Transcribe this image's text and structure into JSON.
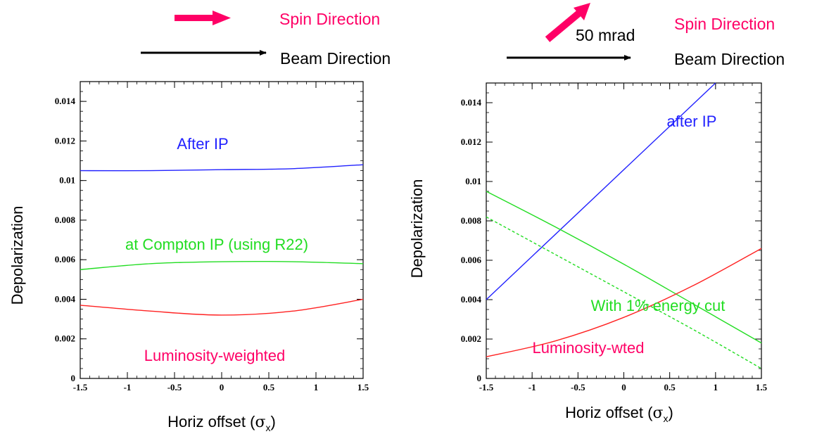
{
  "header": {
    "left": {
      "spin_label": "Spin Direction",
      "beam_label": "Beam Direction"
    },
    "right": {
      "angle_label": "50 mrad",
      "spin_label": "Spin Direction",
      "beam_label": "Beam Direction"
    }
  },
  "colors": {
    "spin": "#ff0066",
    "beam": "#000000",
    "blue": "#2222ff",
    "green": "#22dd22",
    "red": "#ff2222"
  },
  "chart_data": [
    {
      "type": "line",
      "title": "",
      "xlabel_main": "Horiz offset (",
      "xlabel_sigma": "σ",
      "xlabel_sub": "x",
      "xlabel_close": ")",
      "ylabel": "Depolarization",
      "xlim": [
        -1.5,
        1.5
      ],
      "ylim": [
        0,
        0.015
      ],
      "xticks": [
        "-1.5",
        "-1",
        "-0.5",
        "0",
        "0.5",
        "1",
        "1.5"
      ],
      "yticks": [
        "0",
        "0.002",
        "0.004",
        "0.006",
        "0.008",
        "0.01",
        "0.012",
        "0.014"
      ],
      "series": [
        {
          "name": "After IP",
          "color": "#2222ff",
          "x": [
            -1.5,
            -0.75,
            0,
            0.75,
            1.5
          ],
          "y": [
            0.0105,
            0.0105,
            0.01055,
            0.0106,
            0.0108
          ]
        },
        {
          "name": "at Compton IP (using R22)",
          "color": "#22dd22",
          "x": [
            -1.5,
            -0.75,
            0,
            0.75,
            1.5
          ],
          "y": [
            0.0055,
            0.0058,
            0.0059,
            0.0059,
            0.0058
          ]
        },
        {
          "name": "Luminosity-weighted",
          "color": "#ff2222",
          "x": [
            -1.5,
            -0.75,
            0,
            0.75,
            1.5
          ],
          "y": [
            0.0037,
            0.0034,
            0.0032,
            0.0034,
            0.004
          ]
        }
      ]
    },
    {
      "type": "line",
      "title": "",
      "xlabel_main": "Horiz offset (",
      "xlabel_sigma": "σ",
      "xlabel_sub": "x",
      "xlabel_close": ")",
      "ylabel": "Depolarization",
      "xlim": [
        -1.5,
        1.5
      ],
      "ylim": [
        0,
        0.015
      ],
      "xticks": [
        "-1.5",
        "-1",
        "-0.5",
        "0",
        "0.5",
        "1",
        "1.5"
      ],
      "yticks": [
        "0",
        "0.002",
        "0.004",
        "0.006",
        "0.008",
        "0.01",
        "0.012",
        "0.014"
      ],
      "series": [
        {
          "name": "after IP",
          "color": "#2222ff",
          "x": [
            -1.5,
            1.0
          ],
          "y": [
            0.004,
            0.015
          ]
        },
        {
          "name": "With 1% energy cut",
          "color": "#22dd22",
          "x": [
            -1.5,
            -0.75,
            0,
            0.75,
            1.5
          ],
          "y": [
            0.0095,
            0.0077,
            0.0058,
            0.0038,
            0.0018
          ]
        },
        {
          "name": "",
          "color": "#22dd22",
          "dashed": true,
          "x": [
            -1.5,
            -0.75,
            0,
            0.75,
            1.5
          ],
          "y": [
            0.0082,
            0.0063,
            0.0044,
            0.0025,
            0.0005
          ]
        },
        {
          "name": "Luminosity-wted",
          "color": "#ff2222",
          "x": [
            -1.5,
            -0.75,
            0,
            0.75,
            1.5
          ],
          "y": [
            0.0011,
            0.0019,
            0.0031,
            0.0047,
            0.0066
          ]
        }
      ]
    }
  ]
}
